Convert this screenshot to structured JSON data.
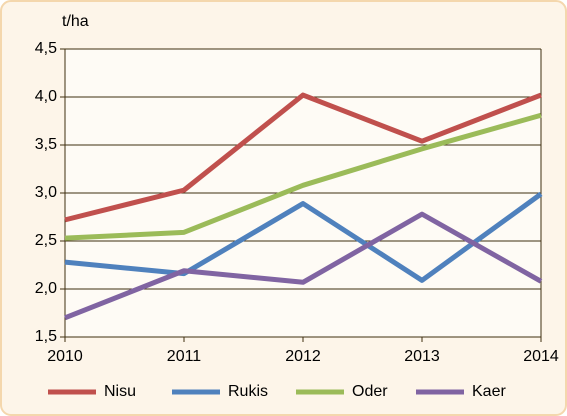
{
  "chart_data": {
    "type": "line",
    "y_label": "t/ha",
    "x": [
      2010,
      2011,
      2012,
      2013,
      2014
    ],
    "xlim": [
      2010,
      2014
    ],
    "xticks": [
      2010,
      2011,
      2012,
      2013,
      2014
    ],
    "ylim": [
      1.5,
      4.5
    ],
    "yticks": [
      {
        "value": 1.5,
        "label": "1,5"
      },
      {
        "value": 2.0,
        "label": "2,0"
      },
      {
        "value": 2.5,
        "label": "2,5"
      },
      {
        "value": 3.0,
        "label": "3,0"
      },
      {
        "value": 3.5,
        "label": "3,5"
      },
      {
        "value": 4.0,
        "label": "4,0"
      },
      {
        "value": 4.5,
        "label": "4,5"
      }
    ],
    "grid": true,
    "legend": "bottom",
    "series": [
      {
        "name": "Nisu",
        "color": "#c0504d",
        "values": [
          2.72,
          3.03,
          4.02,
          3.54,
          4.02
        ]
      },
      {
        "name": "Rukis",
        "color": "#4f81bd",
        "values": [
          2.28,
          2.16,
          2.89,
          2.09,
          2.99
        ]
      },
      {
        "name": "Oder",
        "color": "#9bbb59",
        "values": [
          2.53,
          2.59,
          3.08,
          3.46,
          3.81
        ]
      },
      {
        "name": "Kaer",
        "color": "#8064a2",
        "values": [
          1.7,
          2.19,
          2.07,
          2.78,
          2.08
        ]
      }
    ]
  }
}
